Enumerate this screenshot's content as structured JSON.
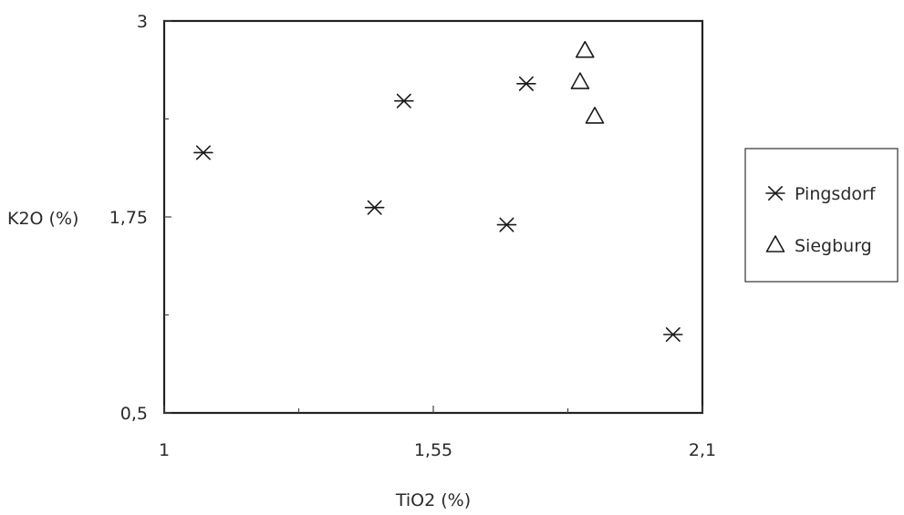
{
  "chart_data": {
    "type": "scatter",
    "xlabel": "TiO2 (%)",
    "ylabel": "K2O (%)",
    "xlim": [
      1,
      2.1
    ],
    "ylim": [
      0.5,
      3
    ],
    "xticks": [
      {
        "value": 1,
        "label": "1"
      },
      {
        "value": 1.55,
        "label": "1,55"
      },
      {
        "value": 2.1,
        "label": "2,1"
      }
    ],
    "yticks": [
      {
        "value": 0.5,
        "label": "0,5"
      },
      {
        "value": 1.75,
        "label": "1,75"
      },
      {
        "value": 3,
        "label": "3"
      }
    ],
    "minor_xticks": [
      1.275,
      1.825
    ],
    "minor_yticks": [
      1.125,
      2.375
    ],
    "grid": false,
    "legend_position": "right",
    "series": [
      {
        "name": "Pingsdorf",
        "marker": "asterisk",
        "points": [
          {
            "x": 1.08,
            "y": 2.16
          },
          {
            "x": 1.49,
            "y": 2.49
          },
          {
            "x": 1.43,
            "y": 1.81
          },
          {
            "x": 1.7,
            "y": 1.7
          },
          {
            "x": 1.74,
            "y": 2.6
          },
          {
            "x": 2.04,
            "y": 1.0
          }
        ]
      },
      {
        "name": "Siegburg",
        "marker": "triangle",
        "points": [
          {
            "x": 1.86,
            "y": 2.81
          },
          {
            "x": 1.85,
            "y": 2.61
          },
          {
            "x": 1.88,
            "y": 2.39
          }
        ]
      }
    ]
  }
}
